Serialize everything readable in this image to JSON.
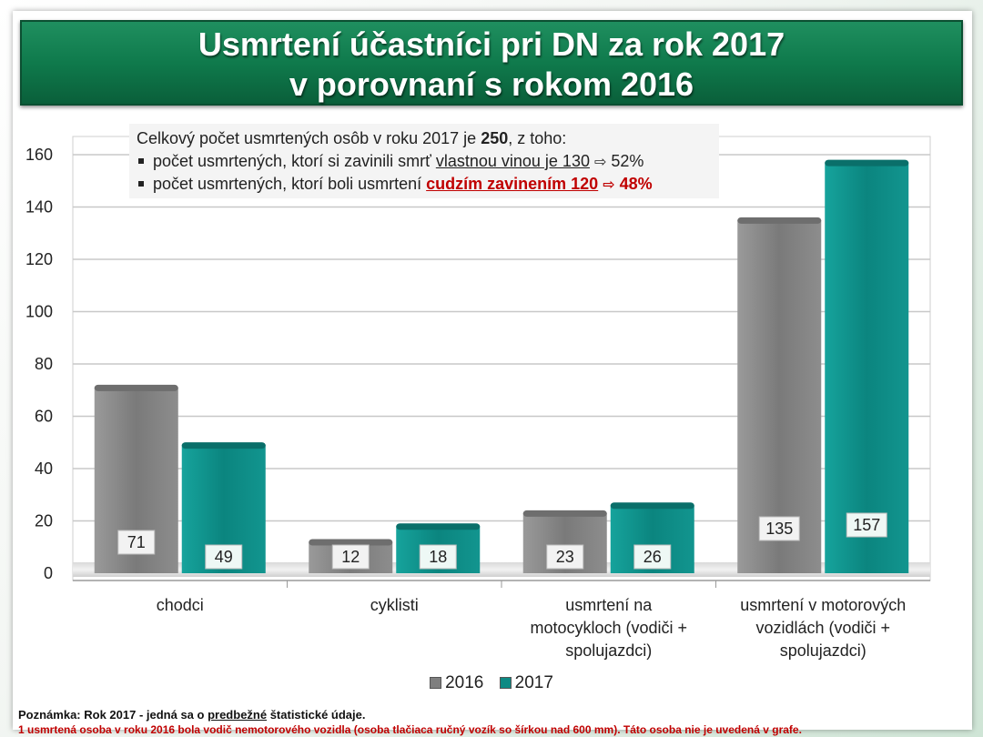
{
  "title": {
    "line1": "Usmrtení účastníci pri DN za rok 2017",
    "line2": "v porovnaní s rokom 2016"
  },
  "info": {
    "line1_pre": "Celkový počet usmrtených osôb v roku 2017 je ",
    "line1_bold": "250",
    "line1_post": ", z toho:",
    "line2_pre": "počet usmrtených, ktorí si zavinili smrť ",
    "line2_underlined": "vlastnou vinou je 130",
    "line2_pct": "52%",
    "line3_pre": "počet usmrtených, ktorí boli usmrtení ",
    "line3_red": "cudzím zavinením 120",
    "line3_pct": "48%",
    "arrow": "⇨"
  },
  "chart_data": {
    "type": "bar",
    "categories": [
      [
        "chodci"
      ],
      [
        "cyklisti"
      ],
      [
        "usmrtení na",
        "motocykloch (vodiči +",
        "spolujazdci)"
      ],
      [
        "usmrtení v motorových",
        "vozidlách (vodiči +",
        "spolujazdci)"
      ]
    ],
    "series": [
      {
        "name": "2016",
        "values": [
          71,
          12,
          23,
          135
        ],
        "color": "#7f7f7f"
      },
      {
        "name": "2017",
        "values": [
          49,
          18,
          26,
          157
        ],
        "color": "#0e8a84"
      }
    ],
    "ylim": [
      0,
      160
    ],
    "yticks": [
      0,
      20,
      40,
      60,
      80,
      100,
      120,
      140,
      160
    ],
    "grid": true,
    "legend_position": "bottom"
  },
  "footnote": {
    "line1_pre": "Poznámka: Rok 2017 - jedná sa o ",
    "line1_underlined": "predbežné",
    "line1_post": " štatistické údaje.",
    "line2": "1 usmrtená osoba v roku 2016  bola vodič nemotorového vozidla (osoba tlačiaca ručný vozík so šírkou nad 600 mm). Táto osoba nie je uvedená v grafe."
  }
}
